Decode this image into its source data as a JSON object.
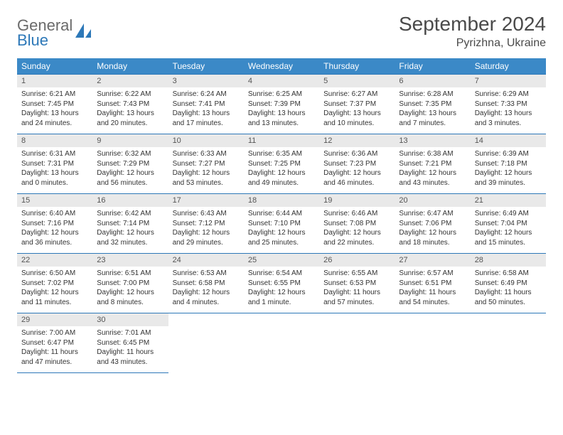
{
  "brand": {
    "word1": "General",
    "word2": "Blue"
  },
  "title": "September 2024",
  "location": "Pyrizhna, Ukraine",
  "colors": {
    "header_bg": "#3b89c7",
    "border": "#2d78b8",
    "daynum_bg": "#e9e9e9",
    "text": "#333333",
    "brand_gray": "#6a6a6a",
    "brand_blue": "#2d78b8",
    "page_bg": "#ffffff"
  },
  "weekdays": [
    "Sunday",
    "Monday",
    "Tuesday",
    "Wednesday",
    "Thursday",
    "Friday",
    "Saturday"
  ],
  "weeks": [
    [
      {
        "day": "1",
        "sunrise": "Sunrise: 6:21 AM",
        "sunset": "Sunset: 7:45 PM",
        "daylight1": "Daylight: 13 hours",
        "daylight2": "and 24 minutes."
      },
      {
        "day": "2",
        "sunrise": "Sunrise: 6:22 AM",
        "sunset": "Sunset: 7:43 PM",
        "daylight1": "Daylight: 13 hours",
        "daylight2": "and 20 minutes."
      },
      {
        "day": "3",
        "sunrise": "Sunrise: 6:24 AM",
        "sunset": "Sunset: 7:41 PM",
        "daylight1": "Daylight: 13 hours",
        "daylight2": "and 17 minutes."
      },
      {
        "day": "4",
        "sunrise": "Sunrise: 6:25 AM",
        "sunset": "Sunset: 7:39 PM",
        "daylight1": "Daylight: 13 hours",
        "daylight2": "and 13 minutes."
      },
      {
        "day": "5",
        "sunrise": "Sunrise: 6:27 AM",
        "sunset": "Sunset: 7:37 PM",
        "daylight1": "Daylight: 13 hours",
        "daylight2": "and 10 minutes."
      },
      {
        "day": "6",
        "sunrise": "Sunrise: 6:28 AM",
        "sunset": "Sunset: 7:35 PM",
        "daylight1": "Daylight: 13 hours",
        "daylight2": "and 7 minutes."
      },
      {
        "day": "7",
        "sunrise": "Sunrise: 6:29 AM",
        "sunset": "Sunset: 7:33 PM",
        "daylight1": "Daylight: 13 hours",
        "daylight2": "and 3 minutes."
      }
    ],
    [
      {
        "day": "8",
        "sunrise": "Sunrise: 6:31 AM",
        "sunset": "Sunset: 7:31 PM",
        "daylight1": "Daylight: 13 hours",
        "daylight2": "and 0 minutes."
      },
      {
        "day": "9",
        "sunrise": "Sunrise: 6:32 AM",
        "sunset": "Sunset: 7:29 PM",
        "daylight1": "Daylight: 12 hours",
        "daylight2": "and 56 minutes."
      },
      {
        "day": "10",
        "sunrise": "Sunrise: 6:33 AM",
        "sunset": "Sunset: 7:27 PM",
        "daylight1": "Daylight: 12 hours",
        "daylight2": "and 53 minutes."
      },
      {
        "day": "11",
        "sunrise": "Sunrise: 6:35 AM",
        "sunset": "Sunset: 7:25 PM",
        "daylight1": "Daylight: 12 hours",
        "daylight2": "and 49 minutes."
      },
      {
        "day": "12",
        "sunrise": "Sunrise: 6:36 AM",
        "sunset": "Sunset: 7:23 PM",
        "daylight1": "Daylight: 12 hours",
        "daylight2": "and 46 minutes."
      },
      {
        "day": "13",
        "sunrise": "Sunrise: 6:38 AM",
        "sunset": "Sunset: 7:21 PM",
        "daylight1": "Daylight: 12 hours",
        "daylight2": "and 43 minutes."
      },
      {
        "day": "14",
        "sunrise": "Sunrise: 6:39 AM",
        "sunset": "Sunset: 7:18 PM",
        "daylight1": "Daylight: 12 hours",
        "daylight2": "and 39 minutes."
      }
    ],
    [
      {
        "day": "15",
        "sunrise": "Sunrise: 6:40 AM",
        "sunset": "Sunset: 7:16 PM",
        "daylight1": "Daylight: 12 hours",
        "daylight2": "and 36 minutes."
      },
      {
        "day": "16",
        "sunrise": "Sunrise: 6:42 AM",
        "sunset": "Sunset: 7:14 PM",
        "daylight1": "Daylight: 12 hours",
        "daylight2": "and 32 minutes."
      },
      {
        "day": "17",
        "sunrise": "Sunrise: 6:43 AM",
        "sunset": "Sunset: 7:12 PM",
        "daylight1": "Daylight: 12 hours",
        "daylight2": "and 29 minutes."
      },
      {
        "day": "18",
        "sunrise": "Sunrise: 6:44 AM",
        "sunset": "Sunset: 7:10 PM",
        "daylight1": "Daylight: 12 hours",
        "daylight2": "and 25 minutes."
      },
      {
        "day": "19",
        "sunrise": "Sunrise: 6:46 AM",
        "sunset": "Sunset: 7:08 PM",
        "daylight1": "Daylight: 12 hours",
        "daylight2": "and 22 minutes."
      },
      {
        "day": "20",
        "sunrise": "Sunrise: 6:47 AM",
        "sunset": "Sunset: 7:06 PM",
        "daylight1": "Daylight: 12 hours",
        "daylight2": "and 18 minutes."
      },
      {
        "day": "21",
        "sunrise": "Sunrise: 6:49 AM",
        "sunset": "Sunset: 7:04 PM",
        "daylight1": "Daylight: 12 hours",
        "daylight2": "and 15 minutes."
      }
    ],
    [
      {
        "day": "22",
        "sunrise": "Sunrise: 6:50 AM",
        "sunset": "Sunset: 7:02 PM",
        "daylight1": "Daylight: 12 hours",
        "daylight2": "and 11 minutes."
      },
      {
        "day": "23",
        "sunrise": "Sunrise: 6:51 AM",
        "sunset": "Sunset: 7:00 PM",
        "daylight1": "Daylight: 12 hours",
        "daylight2": "and 8 minutes."
      },
      {
        "day": "24",
        "sunrise": "Sunrise: 6:53 AM",
        "sunset": "Sunset: 6:58 PM",
        "daylight1": "Daylight: 12 hours",
        "daylight2": "and 4 minutes."
      },
      {
        "day": "25",
        "sunrise": "Sunrise: 6:54 AM",
        "sunset": "Sunset: 6:55 PM",
        "daylight1": "Daylight: 12 hours",
        "daylight2": "and 1 minute."
      },
      {
        "day": "26",
        "sunrise": "Sunrise: 6:55 AM",
        "sunset": "Sunset: 6:53 PM",
        "daylight1": "Daylight: 11 hours",
        "daylight2": "and 57 minutes."
      },
      {
        "day": "27",
        "sunrise": "Sunrise: 6:57 AM",
        "sunset": "Sunset: 6:51 PM",
        "daylight1": "Daylight: 11 hours",
        "daylight2": "and 54 minutes."
      },
      {
        "day": "28",
        "sunrise": "Sunrise: 6:58 AM",
        "sunset": "Sunset: 6:49 PM",
        "daylight1": "Daylight: 11 hours",
        "daylight2": "and 50 minutes."
      }
    ],
    [
      {
        "day": "29",
        "sunrise": "Sunrise: 7:00 AM",
        "sunset": "Sunset: 6:47 PM",
        "daylight1": "Daylight: 11 hours",
        "daylight2": "and 47 minutes."
      },
      {
        "day": "30",
        "sunrise": "Sunrise: 7:01 AM",
        "sunset": "Sunset: 6:45 PM",
        "daylight1": "Daylight: 11 hours",
        "daylight2": "and 43 minutes."
      },
      null,
      null,
      null,
      null,
      null
    ]
  ]
}
